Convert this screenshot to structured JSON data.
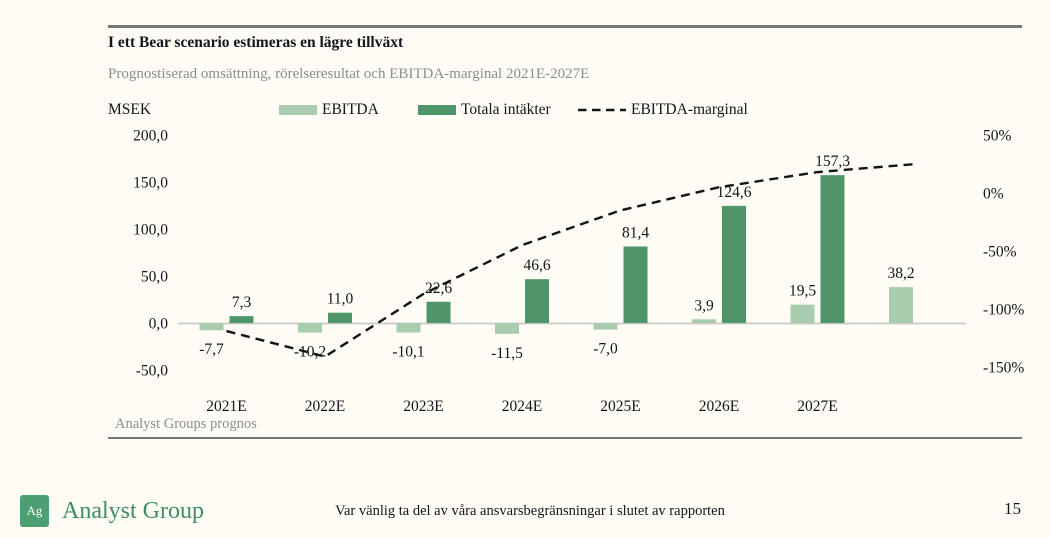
{
  "page": {
    "title": "I ett Bear scenario estimeras en lägre tillväxt",
    "subtitle": "Prognostiserad omsättning, rörelseresultat och EBITDA-marginal 2021E-2027E",
    "source_note": "Analyst Groups prognos",
    "footer": {
      "logo_monogram": "Ag",
      "brand": "Analyst Group",
      "disclaimer": "Var vänlig ta del av våra ansvarsbegränsningar i slutet av rapporten",
      "page_number": "15"
    },
    "colors": {
      "background": "#fefcf5",
      "ebitda_bar": "#a8ccad",
      "revenue_bar": "#4e9669",
      "margin_line": "#141414",
      "zero_line": "#c9c9c9",
      "rule_gray": "#767676",
      "subtitle_gray": "#8c8c8c",
      "logo_green": "#4c9f72",
      "brand_green": "#3f8e63"
    }
  },
  "chart_data": {
    "type": "combo",
    "title": "Prognostiserad omsättning, rörelseresultat och EBITDA-marginal 2021E-2027E",
    "unit": "MSEK",
    "categories": [
      "2021E",
      "2022E",
      "2023E",
      "2024E",
      "2025E",
      "2026E",
      "2027E",
      ""
    ],
    "series": [
      {
        "name": "EBITDA",
        "type": "bar",
        "color": "#a8ccad",
        "values": [
          -7.7,
          -10.2,
          -10.1,
          -11.5,
          -7.0,
          3.9,
          19.5,
          38.2
        ],
        "labels": [
          "-7,7",
          "-10,2",
          "-10,1",
          "-11,5",
          "-7,0",
          "3,9",
          "19,5",
          "38,2"
        ]
      },
      {
        "name": "Totala intäkter",
        "type": "bar",
        "color": "#4e9669",
        "values": [
          7.3,
          11.0,
          22.6,
          46.6,
          81.4,
          124.6,
          157.3,
          null
        ],
        "labels": [
          "7,3",
          "11,0",
          "22,6",
          "46,6",
          "81,4",
          "124,6",
          "157,3",
          null
        ]
      },
      {
        "name": "EBITDA-marginal",
        "type": "dashed-line",
        "axis": "right",
        "color": "#141414",
        "values_pct_estimated": [
          -119,
          -141,
          -87,
          -45,
          -15,
          5,
          18,
          25
        ]
      }
    ],
    "left_axis": {
      "label": "MSEK",
      "ticks": [
        200,
        150,
        100,
        50,
        0,
        -50
      ],
      "range": [
        -50,
        200
      ]
    },
    "right_axis": {
      "ticks_pct": [
        50,
        0,
        -50,
        -100,
        -150
      ],
      "range_pct": [
        -150,
        50
      ]
    },
    "grid": false,
    "legend_position": "top",
    "source_note": "Analyst Groups prognos"
  }
}
